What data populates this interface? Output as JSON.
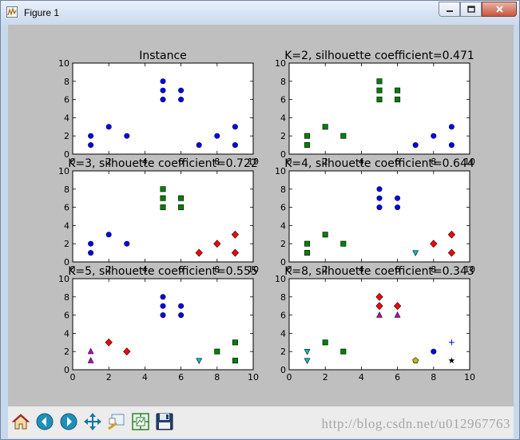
{
  "window": {
    "title": "Figure 1"
  },
  "toolbar": {
    "icons": [
      "home-icon",
      "back-arrow-icon",
      "forward-arrow-icon",
      "pan-move-icon",
      "zoom-rectangle-icon",
      "configure-subplots-icon",
      "save-floppy-icon"
    ]
  },
  "watermark": "http://blog.csdn.net/u012967763",
  "colors": {
    "blue": "#0000ff",
    "green": "#008000",
    "red": "#ff0000",
    "cyan": "#00bfbf",
    "magenta": "#bf00bf",
    "yellow": "#bfbf00",
    "black": "#000000",
    "canvas": "#bfbfbf"
  },
  "chart_data": [
    {
      "type": "scatter",
      "title": "Instance",
      "xlim": [
        0,
        10
      ],
      "ylim": [
        0,
        10
      ],
      "xticks": [
        0,
        2,
        4,
        6,
        8,
        10
      ],
      "yticks": [
        0,
        2,
        4,
        6,
        8,
        10
      ],
      "series": [
        {
          "color": "#0000ff",
          "marker": "o",
          "x": [
            1,
            1,
            2,
            3,
            5,
            5,
            5,
            6,
            6,
            7,
            8,
            9,
            9
          ],
          "y": [
            1,
            2,
            3,
            2,
            8,
            7,
            6,
            7,
            6,
            1,
            2,
            3,
            1
          ]
        }
      ]
    },
    {
      "type": "scatter",
      "title": "K=2, silhouette coefficient=0.471",
      "xlim": [
        0,
        10
      ],
      "ylim": [
        0,
        10
      ],
      "xticks": [
        0,
        2,
        4,
        6,
        8,
        10
      ],
      "yticks": [
        0,
        2,
        4,
        6,
        8,
        10
      ],
      "series": [
        {
          "color": "#008000",
          "marker": "s",
          "x": [
            1,
            1,
            2,
            3,
            5,
            5,
            5,
            6,
            6
          ],
          "y": [
            1,
            2,
            3,
            2,
            8,
            7,
            6,
            7,
            6
          ]
        },
        {
          "color": "#0000ff",
          "marker": "o",
          "x": [
            7,
            8,
            9,
            9
          ],
          "y": [
            1,
            2,
            3,
            1
          ]
        }
      ]
    },
    {
      "type": "scatter",
      "title": "K=3, silhouette coefficient=0.722",
      "xlim": [
        0,
        10
      ],
      "ylim": [
        0,
        10
      ],
      "xticks": [
        0,
        2,
        4,
        6,
        8,
        10
      ],
      "yticks": [
        0,
        2,
        4,
        6,
        8,
        10
      ],
      "series": [
        {
          "color": "#0000ff",
          "marker": "o",
          "x": [
            1,
            1,
            2,
            3
          ],
          "y": [
            1,
            2,
            3,
            2
          ]
        },
        {
          "color": "#008000",
          "marker": "s",
          "x": [
            5,
            5,
            5,
            6,
            6
          ],
          "y": [
            8,
            7,
            6,
            7,
            6
          ]
        },
        {
          "color": "#ff0000",
          "marker": "D",
          "x": [
            7,
            8,
            9,
            9
          ],
          "y": [
            1,
            2,
            3,
            1
          ]
        }
      ]
    },
    {
      "type": "scatter",
      "title": "K=4, silhouette coefficient=0.644",
      "xlim": [
        0,
        10
      ],
      "ylim": [
        0,
        10
      ],
      "xticks": [
        0,
        2,
        4,
        6,
        8,
        10
      ],
      "yticks": [
        0,
        2,
        4,
        6,
        8,
        10
      ],
      "series": [
        {
          "color": "#008000",
          "marker": "s",
          "x": [
            1,
            1,
            2,
            3
          ],
          "y": [
            1,
            2,
            3,
            2
          ]
        },
        {
          "color": "#0000ff",
          "marker": "o",
          "x": [
            5,
            5,
            5,
            6,
            6
          ],
          "y": [
            8,
            7,
            6,
            7,
            6
          ]
        },
        {
          "color": "#00bfbf",
          "marker": "v",
          "x": [
            7
          ],
          "y": [
            1
          ]
        },
        {
          "color": "#ff0000",
          "marker": "D",
          "x": [
            8,
            9,
            9
          ],
          "y": [
            2,
            3,
            1
          ]
        }
      ]
    },
    {
      "type": "scatter",
      "title": "K=5, silhouette coefficient=0.555",
      "xlim": [
        0,
        10
      ],
      "ylim": [
        0,
        10
      ],
      "xticks": [
        0,
        2,
        4,
        6,
        8,
        10
      ],
      "yticks": [
        0,
        2,
        4,
        6,
        8,
        10
      ],
      "series": [
        {
          "color": "#bf00bf",
          "marker": "^",
          "x": [
            1,
            1
          ],
          "y": [
            1,
            2
          ]
        },
        {
          "color": "#ff0000",
          "marker": "D",
          "x": [
            2,
            3
          ],
          "y": [
            3,
            2
          ]
        },
        {
          "color": "#0000ff",
          "marker": "o",
          "x": [
            5,
            5,
            5,
            6,
            6
          ],
          "y": [
            8,
            7,
            6,
            7,
            6
          ]
        },
        {
          "color": "#00bfbf",
          "marker": "v",
          "x": [
            7
          ],
          "y": [
            1
          ]
        },
        {
          "color": "#008000",
          "marker": "s",
          "x": [
            8,
            9,
            9
          ],
          "y": [
            2,
            3,
            1
          ]
        }
      ]
    },
    {
      "type": "scatter",
      "title": "K=8, silhouette coefficient=0.343",
      "xlim": [
        0,
        10
      ],
      "ylim": [
        0,
        10
      ],
      "xticks": [
        0,
        2,
        4,
        6,
        8,
        10
      ],
      "yticks": [
        0,
        2,
        4,
        6,
        8,
        10
      ],
      "series": [
        {
          "color": "#00bfbf",
          "marker": "v",
          "x": [
            1,
            1
          ],
          "y": [
            1,
            2
          ]
        },
        {
          "color": "#008000",
          "marker": "s",
          "x": [
            2,
            3
          ],
          "y": [
            3,
            2
          ]
        },
        {
          "color": "#ff0000",
          "marker": "D",
          "x": [
            5,
            5,
            6
          ],
          "y": [
            8,
            7,
            7
          ]
        },
        {
          "color": "#bf00bf",
          "marker": "^",
          "x": [
            5,
            6
          ],
          "y": [
            6,
            6
          ]
        },
        {
          "color": "#bfbf00",
          "marker": "p",
          "x": [
            7
          ],
          "y": [
            1
          ]
        },
        {
          "color": "#0000ff",
          "marker": "o",
          "x": [
            8
          ],
          "y": [
            2
          ]
        },
        {
          "color": "#0000ff",
          "marker": "+",
          "x": [
            9
          ],
          "y": [
            3
          ]
        },
        {
          "color": "#000000",
          "marker": "*",
          "x": [
            9
          ],
          "y": [
            1
          ]
        }
      ]
    }
  ]
}
